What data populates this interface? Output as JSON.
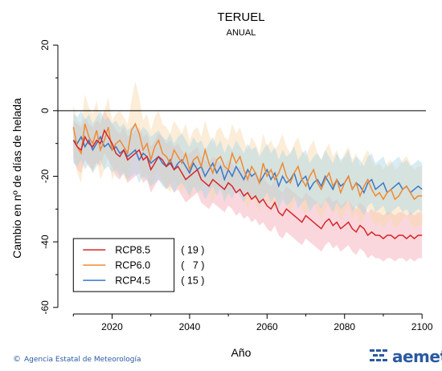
{
  "chart_data": {
    "type": "line",
    "title": "TERUEL",
    "subtitle": "ANUAL",
    "xlabel": "Año",
    "ylabel": "Cambio en nº de días de helada",
    "xlim": [
      2006,
      2101
    ],
    "ylim": [
      -62,
      22
    ],
    "x_ticks": [
      2020,
      2040,
      2060,
      2080,
      2100
    ],
    "y_ticks": [
      20,
      0,
      -20,
      -40,
      -60
    ],
    "reference_line": 0,
    "legend_position": "bottom-left",
    "series": [
      {
        "name": "RCP8.5",
        "count": "( 19 )",
        "color": "#d62728",
        "band_color": "#f4a6b3",
        "start_year": 2010,
        "values": [
          -9,
          -11,
          -12,
          -8,
          -10,
          -11,
          -9,
          -10,
          -6,
          -8,
          -10,
          -13,
          -14,
          -12,
          -15,
          -14,
          -13,
          -12,
          -15,
          -14,
          -18,
          -16,
          -14,
          -15,
          -17,
          -16,
          -18,
          -17,
          -19,
          -21,
          -20,
          -19,
          -18,
          -21,
          -22,
          -23,
          -21,
          -22,
          -23,
          -24,
          -22,
          -23,
          -25,
          -24,
          -26,
          -25,
          -27,
          -26,
          -28,
          -27,
          -29,
          -30,
          -28,
          -31,
          -32,
          -30,
          -31,
          -32,
          -33,
          -34,
          -32,
          -33,
          -34,
          -35,
          -36,
          -34,
          -33,
          -35,
          -34,
          -36,
          -35,
          -34,
          -36,
          -37,
          -35,
          -36,
          -38,
          -37,
          -38,
          -38,
          -39,
          -38,
          -38,
          -39,
          -38,
          -38,
          -39,
          -38,
          -39,
          -38,
          -38
        ],
        "band_upper": [
          -3,
          -4,
          -5,
          -2,
          -4,
          -5,
          -3,
          -4,
          0,
          -2,
          -4,
          -6,
          -7,
          -5,
          -8,
          -7,
          -6,
          -5,
          -8,
          -7,
          -11,
          -9,
          -7,
          -8,
          -10,
          -9,
          -11,
          -10,
          -12,
          -14,
          -13,
          -12,
          -11,
          -14,
          -15,
          -16,
          -14,
          -15,
          -16,
          -17,
          -15,
          -16,
          -18,
          -17,
          -19,
          -18,
          -20,
          -19,
          -21,
          -20,
          -22,
          -23,
          -21,
          -24,
          -25,
          -23,
          -24,
          -25,
          -26,
          -27,
          -25,
          -26,
          -27,
          -28,
          -29,
          -27,
          -26,
          -28,
          -27,
          -29,
          -28,
          -27,
          -29,
          -30,
          -28,
          -29,
          -31,
          -30,
          -31,
          -31,
          -32,
          -31,
          -31,
          -32,
          -31,
          -31,
          -32,
          -31,
          -32,
          -31,
          -31
        ],
        "band_lower": [
          -15,
          -18,
          -19,
          -15,
          -17,
          -18,
          -16,
          -17,
          -13,
          -15,
          -17,
          -20,
          -21,
          -19,
          -22,
          -21,
          -20,
          -19,
          -22,
          -21,
          -25,
          -23,
          -21,
          -22,
          -24,
          -23,
          -25,
          -24,
          -26,
          -28,
          -27,
          -26,
          -25,
          -28,
          -29,
          -30,
          -28,
          -29,
          -30,
          -31,
          -29,
          -30,
          -32,
          -31,
          -33,
          -32,
          -34,
          -33,
          -35,
          -34,
          -36,
          -37,
          -35,
          -38,
          -39,
          -37,
          -38,
          -39,
          -40,
          -41,
          -39,
          -40,
          -41,
          -42,
          -43,
          -41,
          -40,
          -42,
          -41,
          -43,
          -42,
          -41,
          -43,
          -44,
          -42,
          -43,
          -45,
          -44,
          -45,
          -45,
          -46,
          -45,
          -45,
          -46,
          -45,
          -45,
          -46,
          -45,
          -46,
          -45,
          -45
        ]
      },
      {
        "name": "RCP6.0",
        "count": "(   7 )",
        "color": "#f08a30",
        "band_color": "#f9d6a8",
        "start_year": 2010,
        "values": [
          -5,
          -11,
          -13,
          -4,
          -8,
          -10,
          -6,
          -12,
          -9,
          -5,
          -12,
          -10,
          -9,
          -11,
          -13,
          -6,
          -4,
          -7,
          -12,
          -10,
          -15,
          -11,
          -9,
          -13,
          -14,
          -16,
          -12,
          -14,
          -16,
          -13,
          -18,
          -15,
          -14,
          -17,
          -12,
          -16,
          -19,
          -15,
          -14,
          -17,
          -18,
          -13,
          -16,
          -14,
          -18,
          -21,
          -17,
          -19,
          -22,
          -16,
          -20,
          -18,
          -21,
          -19,
          -16,
          -20,
          -22,
          -19,
          -17,
          -21,
          -23,
          -20,
          -18,
          -22,
          -24,
          -21,
          -19,
          -23,
          -21,
          -25,
          -22,
          -20,
          -24,
          -22,
          -26,
          -23,
          -21,
          -24,
          -26,
          -25,
          -27,
          -25,
          -24,
          -27,
          -26,
          -24,
          -23,
          -25,
          -27,
          -26,
          -26
        ],
        "band_upper": [
          2,
          -3,
          -4,
          5,
          1,
          -1,
          3,
          -3,
          0,
          4,
          -3,
          -1,
          0,
          -2,
          -4,
          3,
          9,
          4,
          -3,
          -1,
          -6,
          -2,
          0,
          -4,
          -5,
          -7,
          -3,
          -5,
          -7,
          -4,
          -9,
          -6,
          -5,
          -8,
          -3,
          -7,
          -10,
          -6,
          -5,
          -8,
          -9,
          -4,
          -7,
          -5,
          -9,
          -12,
          -8,
          -10,
          -13,
          -7,
          -11,
          -9,
          -12,
          -10,
          -7,
          -11,
          -13,
          -10,
          -8,
          -12,
          -14,
          -11,
          -9,
          -13,
          -15,
          -12,
          -10,
          -14,
          -12,
          -16,
          -13,
          -11,
          -15,
          -13,
          -17,
          -14,
          -12,
          -15,
          -17,
          -16,
          -18,
          -16,
          -15,
          -18,
          -17,
          -15,
          -14,
          -16,
          -18,
          -17,
          -17
        ],
        "band_lower": [
          -12,
          -19,
          -22,
          -13,
          -17,
          -19,
          -15,
          -21,
          -18,
          -14,
          -21,
          -19,
          -18,
          -20,
          -22,
          -15,
          -13,
          -16,
          -21,
          -19,
          -24,
          -20,
          -18,
          -22,
          -23,
          -25,
          -21,
          -23,
          -25,
          -22,
          -27,
          -24,
          -23,
          -26,
          -21,
          -25,
          -28,
          -24,
          -23,
          -26,
          -27,
          -22,
          -25,
          -23,
          -27,
          -30,
          -26,
          -28,
          -31,
          -25,
          -29,
          -27,
          -30,
          -28,
          -25,
          -29,
          -31,
          -28,
          -26,
          -30,
          -32,
          -29,
          -27,
          -31,
          -33,
          -30,
          -28,
          -32,
          -30,
          -34,
          -31,
          -29,
          -33,
          -31,
          -35,
          -32,
          -30,
          -33,
          -35,
          -34,
          -36,
          -34,
          -33,
          -36,
          -35,
          -33,
          -32,
          -34,
          -36,
          -35,
          -35
        ]
      },
      {
        "name": "RCP4.5",
        "count": "( 15 )",
        "color": "#3a78c8",
        "band_color": "#a9d4e6",
        "start_year": 2010,
        "values": [
          -9,
          -10,
          -8,
          -11,
          -9,
          -12,
          -10,
          -8,
          -11,
          -10,
          -12,
          -11,
          -13,
          -12,
          -14,
          -13,
          -12,
          -15,
          -13,
          -14,
          -16,
          -15,
          -14,
          -16,
          -17,
          -15,
          -18,
          -16,
          -15,
          -17,
          -19,
          -16,
          -18,
          -17,
          -20,
          -18,
          -16,
          -19,
          -17,
          -21,
          -18,
          -20,
          -17,
          -19,
          -21,
          -18,
          -20,
          -19,
          -22,
          -20,
          -18,
          -21,
          -19,
          -23,
          -20,
          -22,
          -21,
          -19,
          -23,
          -21,
          -20,
          -24,
          -22,
          -21,
          -23,
          -20,
          -22,
          -24,
          -21,
          -23,
          -22,
          -20,
          -24,
          -22,
          -23,
          -25,
          -22,
          -21,
          -24,
          -23,
          -22,
          -25,
          -24,
          -23,
          -22,
          -24,
          -23,
          -25,
          -24,
          -23,
          -24
        ],
        "band_upper": [
          -1,
          -2,
          0,
          -3,
          -1,
          -4,
          -2,
          0,
          -3,
          -2,
          -4,
          -3,
          -5,
          -4,
          -6,
          -5,
          -4,
          -7,
          -5,
          -6,
          -8,
          -7,
          -6,
          -8,
          -9,
          -7,
          -10,
          -8,
          -7,
          -9,
          -11,
          -8,
          -10,
          -9,
          -12,
          -10,
          -8,
          -11,
          -9,
          -13,
          -10,
          -12,
          -9,
          -11,
          -13,
          -10,
          -12,
          -11,
          -14,
          -12,
          -10,
          -13,
          -11,
          -15,
          -12,
          -14,
          -13,
          -11,
          -15,
          -13,
          -12,
          -16,
          -14,
          -13,
          -15,
          -12,
          -14,
          -16,
          -13,
          -15,
          -14,
          -12,
          -16,
          -14,
          -15,
          -17,
          -14,
          -13,
          -16,
          -15,
          -14,
          -17,
          -16,
          -15,
          -14,
          -16,
          -15,
          -17,
          -16,
          -15,
          -16
        ],
        "band_lower": [
          -16,
          -17,
          -15,
          -18,
          -16,
          -19,
          -17,
          -15,
          -18,
          -17,
          -19,
          -18,
          -20,
          -19,
          -21,
          -20,
          -19,
          -22,
          -20,
          -21,
          -23,
          -22,
          -21,
          -23,
          -24,
          -22,
          -25,
          -23,
          -22,
          -24,
          -26,
          -23,
          -25,
          -24,
          -27,
          -25,
          -23,
          -26,
          -24,
          -28,
          -25,
          -27,
          -24,
          -26,
          -28,
          -25,
          -27,
          -26,
          -29,
          -27,
          -25,
          -28,
          -26,
          -30,
          -27,
          -29,
          -28,
          -26,
          -30,
          -28,
          -27,
          -31,
          -29,
          -28,
          -30,
          -27,
          -29,
          -31,
          -28,
          -30,
          -29,
          -27,
          -31,
          -29,
          -30,
          -32,
          -29,
          -28,
          -31,
          -30,
          -29,
          -32,
          -31,
          -30,
          -29,
          -31,
          -30,
          -32,
          -31,
          -30,
          -31
        ]
      }
    ]
  },
  "footer": {
    "copyright_symbol": "©",
    "agency": "Agencia Estatal de Meteorología",
    "logo_text": "aemet"
  }
}
